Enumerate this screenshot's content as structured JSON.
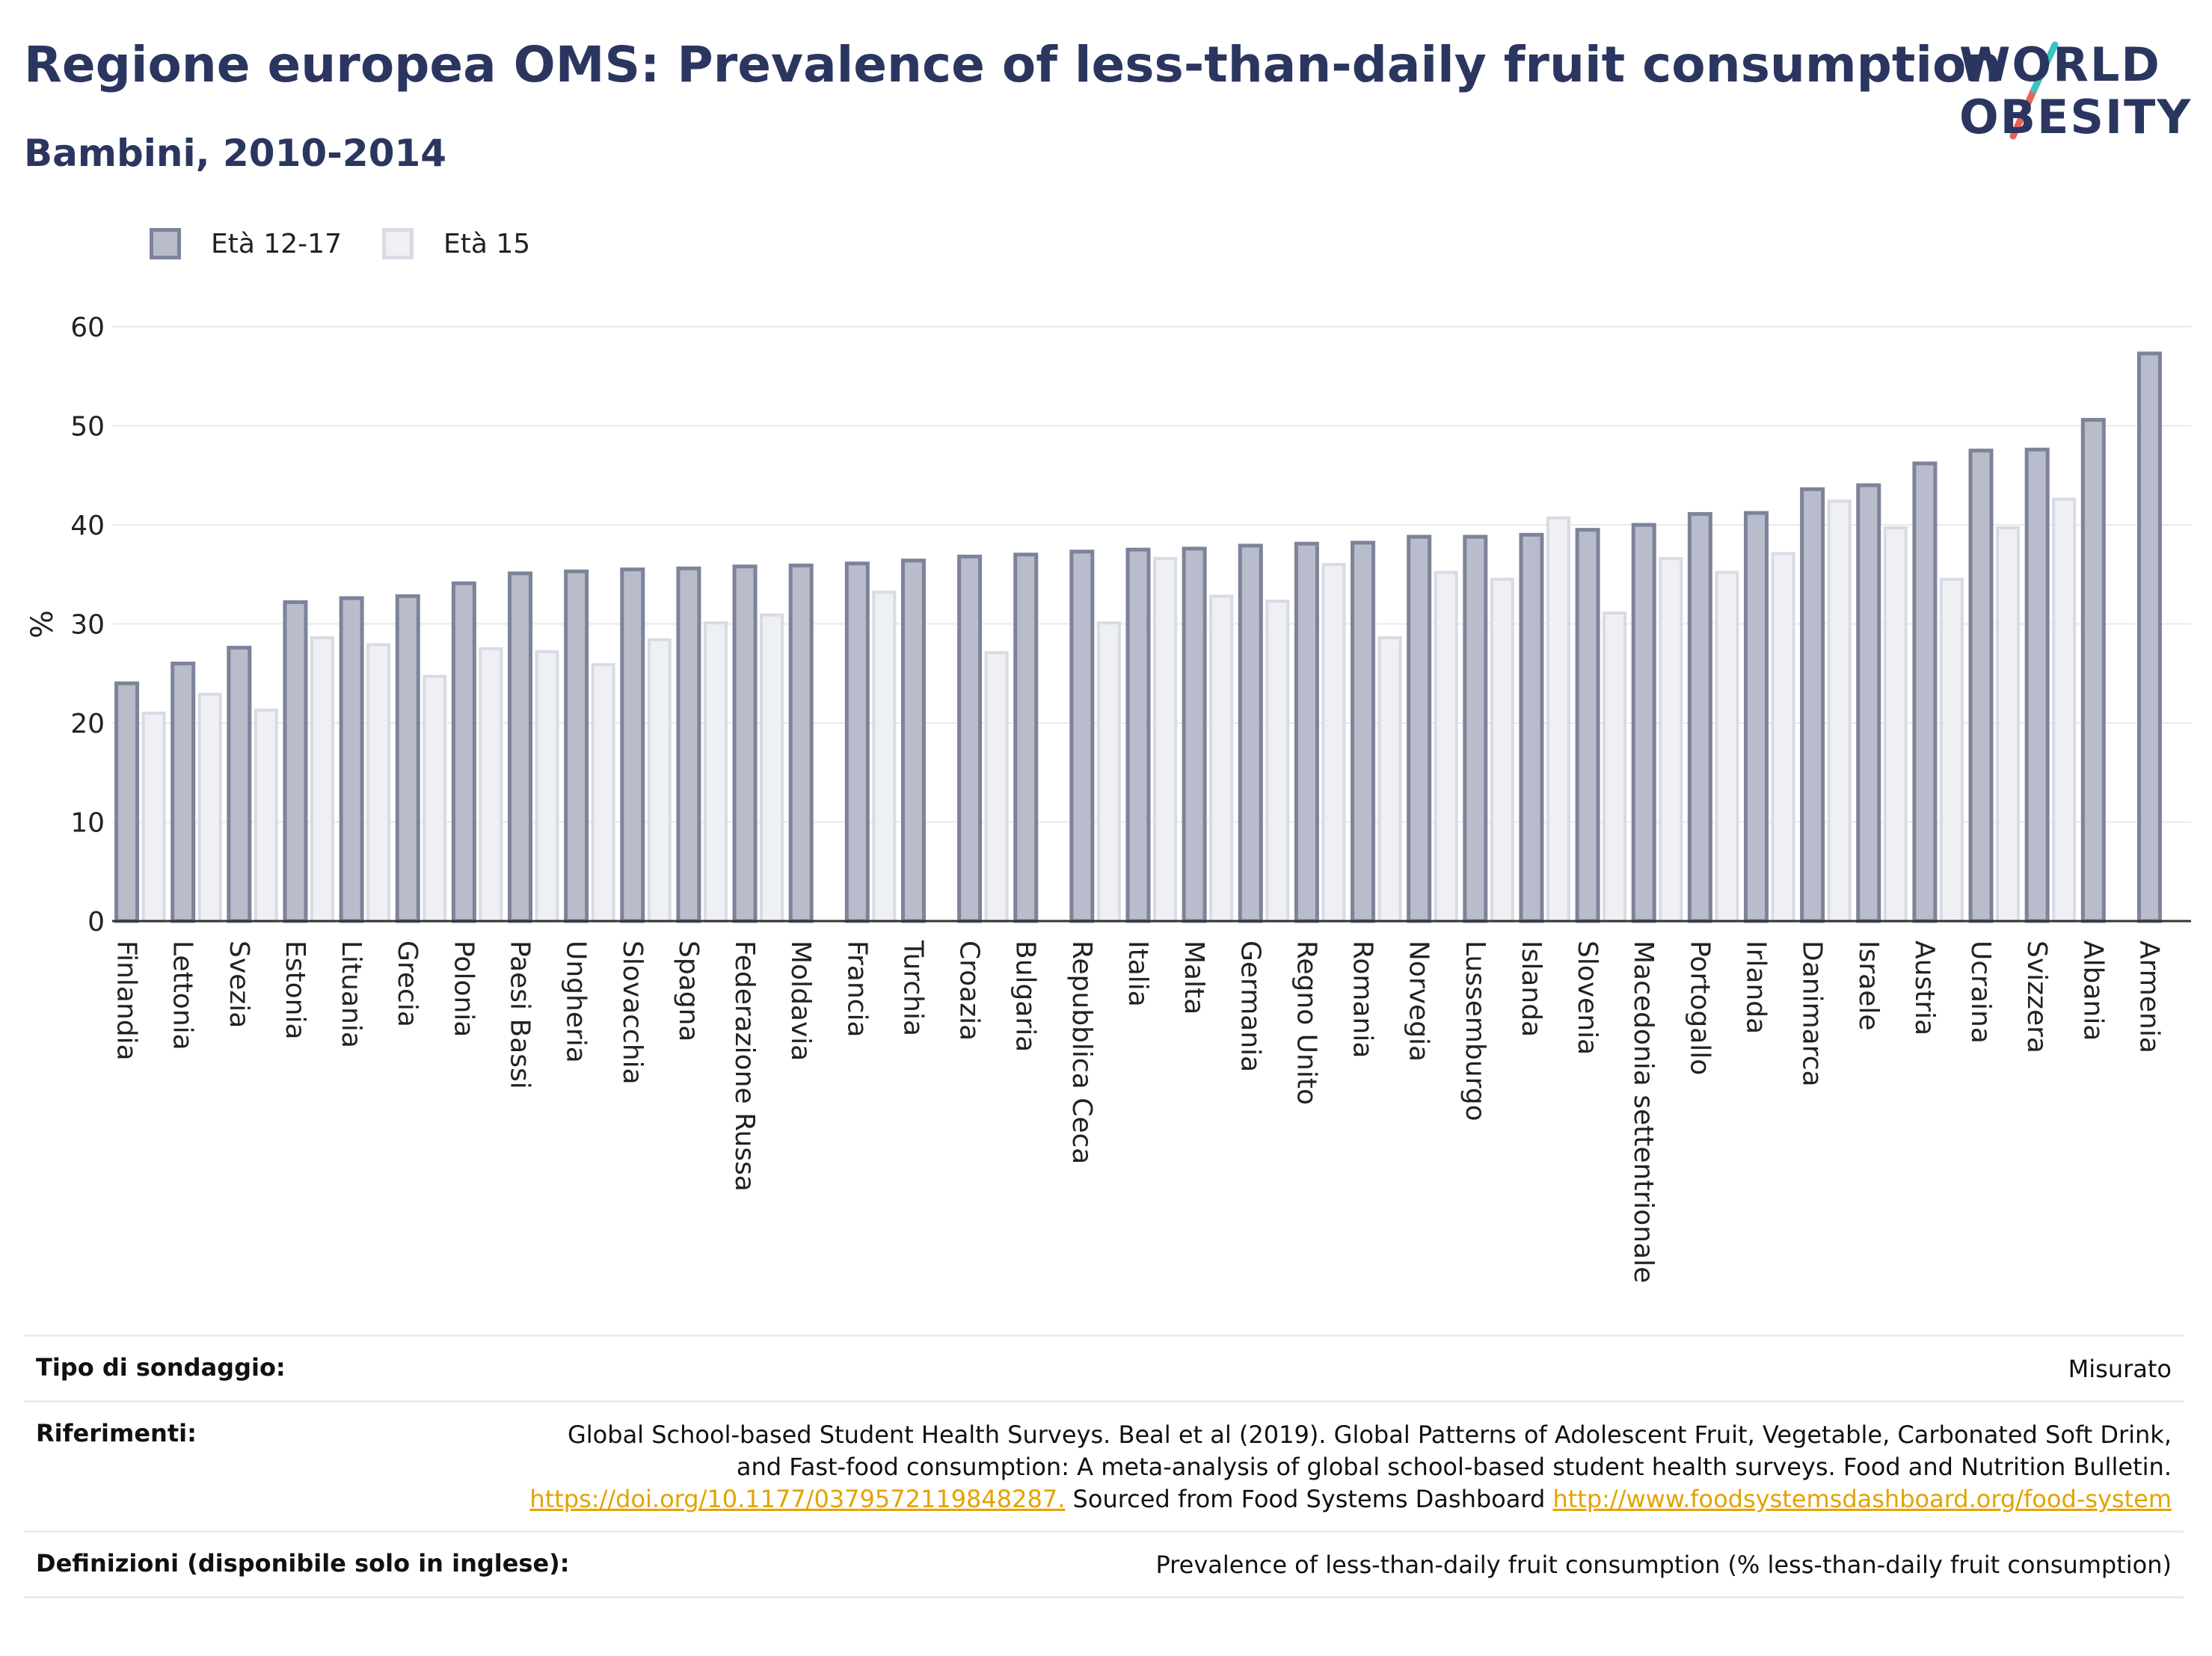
{
  "header": {
    "title": "Regione europea OMS: Prevalence of less-than-daily fruit consumption",
    "subtitle": "Bambini, 2010-2014"
  },
  "logo": {
    "line1": "WORLD",
    "line2": "OBESITY",
    "colors": {
      "navy": "#2b3660",
      "teal": "#3cc2c2",
      "coral": "#e5645a"
    }
  },
  "legend": [
    {
      "label": "Età 12-17",
      "color": "#b8bccb",
      "border": "#7d8399"
    },
    {
      "label": "Età 15",
      "color": "#eef0f4",
      "border": "#d8dbe3"
    }
  ],
  "chart_data": {
    "type": "bar",
    "ylabel": "%",
    "ylim": [
      0,
      60
    ],
    "yticks": [
      0,
      10,
      20,
      30,
      40,
      50,
      60
    ],
    "grid": true,
    "legend_position": "top-left",
    "categories": [
      "Finlandia",
      "Lettonia",
      "Svezia",
      "Estonia",
      "Lituania",
      "Grecia",
      "Polonia",
      "Paesi Bassi",
      "Ungheria",
      "Slovacchia",
      "Spagna",
      "Federazione Russa",
      "Moldavia",
      "Francia",
      "Turchia",
      "Croazia",
      "Bulgaria",
      "Repubblica Ceca",
      "Italia",
      "Malta",
      "Germania",
      "Regno Unito",
      "Romania",
      "Norvegia",
      "Lussemburgo",
      "Islanda",
      "Slovenia",
      "Macedonia settentrionale",
      "Portogallo",
      "Irlanda",
      "Danimarca",
      "Israele",
      "Austria",
      "Ucraina",
      "Svizzera",
      "Albania",
      "Armenia"
    ],
    "series": [
      {
        "name": "Età 12-17",
        "color": "#b8bccb",
        "border": "#7d8399",
        "values": [
          24.0,
          26.0,
          27.6,
          32.2,
          32.6,
          32.8,
          34.1,
          35.1,
          35.3,
          35.5,
          35.6,
          35.8,
          35.9,
          36.1,
          36.4,
          36.8,
          37.0,
          37.3,
          37.5,
          37.6,
          37.9,
          38.1,
          38.2,
          38.8,
          38.8,
          39.0,
          39.5,
          40.0,
          41.1,
          41.2,
          43.6,
          44.0,
          46.2,
          47.5,
          47.6,
          50.6,
          57.3
        ]
      },
      {
        "name": "Età 15",
        "color": "#eef0f4",
        "border": "#d8dbe3",
        "values": [
          21.0,
          22.9,
          21.3,
          28.6,
          27.9,
          24.7,
          27.5,
          27.2,
          25.9,
          28.4,
          30.1,
          30.9,
          null,
          33.2,
          null,
          27.1,
          null,
          30.1,
          36.6,
          32.8,
          32.3,
          36.0,
          28.6,
          35.2,
          34.5,
          40.7,
          31.1,
          36.6,
          35.2,
          37.1,
          42.4,
          39.7,
          34.5,
          39.7,
          42.6,
          null,
          null
        ]
      }
    ]
  },
  "footer": {
    "survey_label": "Tipo di sondaggio:",
    "survey_value": "Misurato",
    "refs_label": "Riferimenti:",
    "refs_text1": "Global School-based Student Health Surveys. Beal et al (2019). Global Patterns of Adolescent Fruit, Vegetable, Carbonated Soft Drink, and Fast-food consumption: A meta-analysis of global school-based student health surveys. Food and Nutrition Bulletin.",
    "refs_link1": "https://doi.org/10.1177/0379572119848287.",
    "refs_text2": "Sourced from Food Systems Dashboard",
    "refs_link2": "http://www.foodsystemsdashboard.org/food-system",
    "defs_label": "Definizioni (disponibile solo in inglese):",
    "defs_value": "Prevalence of less-than-daily fruit consumption (% less-than-daily fruit consumption)"
  }
}
